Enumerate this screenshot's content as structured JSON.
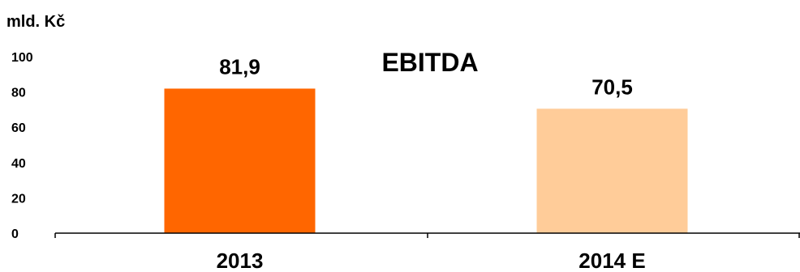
{
  "chart_data": {
    "type": "bar",
    "title": "EBITDA",
    "ylabel": "mld. Kč",
    "xlabel": "",
    "categories": [
      "2013",
      "2014 E"
    ],
    "values": [
      81.9,
      70.5
    ],
    "value_labels": [
      "81,9",
      "70,5"
    ],
    "bar_colors": [
      "#FF6600",
      "#FFCC99"
    ],
    "ylim": [
      0,
      100
    ],
    "yticks": [
      0,
      20,
      40,
      60,
      80,
      100
    ],
    "ytick_labels": [
      "0",
      "20",
      "40",
      "60",
      "80",
      "100"
    ],
    "grid": false,
    "legend": "none"
  }
}
